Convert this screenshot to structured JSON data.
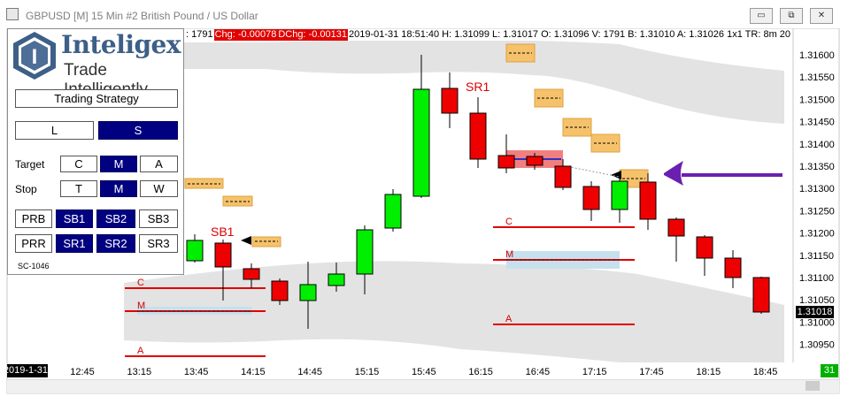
{
  "window": {
    "title": "GBPUSD [M]  15 Min   #2  British Pound / US Dollar",
    "minimize_glyph": "▭",
    "maximize_glyph": "⧉",
    "close_glyph": "✕"
  },
  "infobar": {
    "volume_tail": ": 1791",
    "chg": "Chg: -0.00078",
    "dchg": "DChg: -0.00131",
    "details": "2019-01-31  18:51:40 H: 1.31099 L: 1.31017 O: 1.31096 V: 1791 B: 1.31010 A: 1.31026 1x1 TR: 8m 20"
  },
  "panel": {
    "logo_name": "Inteligex",
    "logo_tagline": "Trade Intelligently",
    "logo_letter": "I",
    "strategy_button": "Trading Strategy",
    "long_button": "L",
    "short_button": "S",
    "target_label": "Target",
    "stop_label": "Stop",
    "target_options": [
      "C",
      "M",
      "A"
    ],
    "stop_options": [
      "T",
      "M",
      "W"
    ],
    "row1": [
      "PRB",
      "SB1",
      "SB2",
      "SB3"
    ],
    "row2": [
      "PRR",
      "SR1",
      "SR2",
      "SR3"
    ],
    "footer": "SC-1046",
    "selected": {
      "direction": "S",
      "target": "M",
      "stop": "M"
    }
  },
  "price_axis": {
    "labels": [
      "1.31600",
      "1.31550",
      "1.31500",
      "1.31450",
      "1.31400",
      "1.31350",
      "1.31300",
      "1.31250",
      "1.31200",
      "1.31150",
      "1.31100",
      "1.31050",
      "1.31000",
      "1.30950"
    ],
    "current_price": "1.31018"
  },
  "time_axis": {
    "labels": [
      "12:45",
      "13:15",
      "13:45",
      "14:15",
      "14:45",
      "15:15",
      "15:45",
      "16:15",
      "16:45",
      "17:15",
      "17:45",
      "18:15",
      "18:45"
    ],
    "date_label": "2019-1-31",
    "bar_count": "31"
  },
  "annotations": {
    "sb1_label": "SB1",
    "sr1_label": "SR1",
    "target_c": "C",
    "target_m": "M",
    "target_a": "A"
  },
  "colors": {
    "bull": "#00ee00",
    "bear": "#ee0000",
    "band": "#e3e3e3",
    "target_line": "#e00000",
    "arrow": "#6a1fb0",
    "orange_box": "#f5c26b",
    "blue_zone": "#c6e0ee",
    "selected_button": "#000080"
  }
}
